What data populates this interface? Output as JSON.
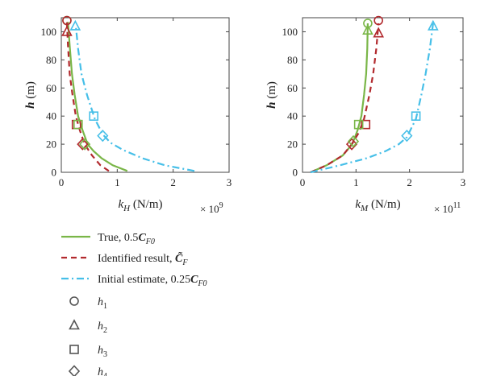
{
  "colors": {
    "true": "#7ab648",
    "identified": "#b22a2e",
    "initial": "#46bfe8",
    "marker": "#555555"
  },
  "chart_data": [
    {
      "type": "line",
      "ylabel": "h (m)",
      "xlabel": "k_H (N/m)",
      "xlabel_main": "k",
      "xlabel_sub": "H",
      "xlabel_unit": " (N/m)",
      "exponent_base": "× 10",
      "exponent_power": "9",
      "xlim": [
        0,
        3
      ],
      "ylim": [
        0,
        110
      ],
      "xticks": [
        0,
        1,
        2,
        3
      ],
      "yticks": [
        0,
        20,
        40,
        60,
        80,
        100
      ],
      "xtick_labels": [
        "0",
        "1",
        "2",
        "3"
      ],
      "ytick_labels": [
        "0",
        "20",
        "40",
        "60",
        "80",
        "100"
      ],
      "series": [
        {
          "key": "true",
          "x": [
            1.18,
            0.92,
            0.72,
            0.58,
            0.47,
            0.38,
            0.3,
            0.24,
            0.19,
            0.15,
            0.12
          ],
          "y": [
            1,
            5,
            10,
            15,
            20,
            30,
            40,
            55,
            70,
            90,
            107
          ]
        },
        {
          "key": "identified",
          "x": [
            0.85,
            0.7,
            0.55,
            0.45,
            0.4,
            0.33,
            0.26,
            0.2,
            0.15,
            0.12,
            0.1
          ],
          "y": [
            1,
            5,
            12,
            18,
            22,
            30,
            40,
            55,
            70,
            90,
            107
          ]
        },
        {
          "key": "initial",
          "x": [
            2.38,
            1.85,
            1.45,
            1.1,
            0.88,
            0.74,
            0.6,
            0.46,
            0.36,
            0.3,
            0.26
          ],
          "y": [
            1,
            5,
            10,
            16,
            21,
            27,
            38,
            55,
            70,
            88,
            104
          ]
        }
      ],
      "markers": [
        {
          "shape": "circle",
          "key": "true",
          "x": 0.1,
          "y": 108
        },
        {
          "shape": "circle",
          "key": "identified",
          "x": 0.1,
          "y": 108
        },
        {
          "shape": "triangle",
          "key": "identified",
          "x": 0.1,
          "y": 100
        },
        {
          "shape": "triangle",
          "key": "initial",
          "x": 0.25,
          "y": 104
        },
        {
          "shape": "square",
          "key": "initial",
          "x": 0.58,
          "y": 40
        },
        {
          "shape": "square",
          "key": "identified",
          "x": 0.27,
          "y": 34
        },
        {
          "shape": "square",
          "key": "true",
          "x": 0.3,
          "y": 34
        },
        {
          "shape": "diamond",
          "key": "initial",
          "x": 0.74,
          "y": 26
        },
        {
          "shape": "diamond",
          "key": "identified",
          "x": 0.38,
          "y": 20
        },
        {
          "shape": "diamond",
          "key": "true",
          "x": 0.42,
          "y": 20
        }
      ]
    },
    {
      "type": "line",
      "ylabel": "h (m)",
      "xlabel": "k_M (N/m)",
      "xlabel_main": "k",
      "xlabel_sub": "M",
      "xlabel_unit": " (N/m)",
      "exponent_base": "× 10",
      "exponent_power": "11",
      "xlim": [
        0,
        3
      ],
      "ylim": [
        0,
        110
      ],
      "xticks": [
        0,
        1,
        2,
        3
      ],
      "yticks": [
        0,
        20,
        40,
        60,
        80,
        100
      ],
      "xtick_labels": [
        "0",
        "1",
        "2",
        "3"
      ],
      "ytick_labels": [
        "0",
        "20",
        "40",
        "60",
        "80",
        "100"
      ],
      "series": [
        {
          "key": "true",
          "x": [
            0.15,
            0.45,
            0.75,
            0.93,
            1.03,
            1.1,
            1.15,
            1.19,
            1.21,
            1.22
          ],
          "y": [
            0,
            5,
            12,
            20,
            30,
            40,
            55,
            70,
            88,
            106
          ]
        },
        {
          "key": "identified",
          "x": [
            0.15,
            0.45,
            0.75,
            0.92,
            1.05,
            1.15,
            1.25,
            1.32,
            1.38,
            1.42
          ],
          "y": [
            0,
            5,
            12,
            20,
            28,
            38,
            55,
            70,
            88,
            106
          ]
        },
        {
          "key": "initial",
          "x": [
            0.15,
            0.7,
            1.2,
            1.55,
            1.8,
            1.95,
            2.12,
            2.22,
            2.3,
            2.38,
            2.44
          ],
          "y": [
            0,
            5,
            10,
            15,
            20,
            25,
            38,
            55,
            70,
            88,
            106
          ]
        }
      ],
      "markers": [
        {
          "shape": "circle",
          "key": "true",
          "x": 1.22,
          "y": 106
        },
        {
          "shape": "circle",
          "key": "identified",
          "x": 1.42,
          "y": 108
        },
        {
          "shape": "triangle",
          "key": "true",
          "x": 1.22,
          "y": 101
        },
        {
          "shape": "triangle",
          "key": "identified",
          "x": 1.42,
          "y": 99
        },
        {
          "shape": "triangle",
          "key": "initial",
          "x": 2.44,
          "y": 104
        },
        {
          "shape": "square",
          "key": "initial",
          "x": 2.12,
          "y": 40
        },
        {
          "shape": "square",
          "key": "identified",
          "x": 1.18,
          "y": 34
        },
        {
          "shape": "square",
          "key": "true",
          "x": 1.05,
          "y": 34
        },
        {
          "shape": "diamond",
          "key": "initial",
          "x": 1.95,
          "y": 26
        },
        {
          "shape": "diamond",
          "key": "identified",
          "x": 0.92,
          "y": 20
        },
        {
          "shape": "diamond",
          "key": "true",
          "x": 0.95,
          "y": 22
        }
      ]
    }
  ],
  "legend": [
    {
      "key": "true",
      "style": "solid",
      "text": "True, 0.5",
      "math": "C",
      "sub": "F0"
    },
    {
      "key": "identified",
      "style": "dashed",
      "text": "Identified result, ",
      "math": "C̃",
      "sub": "F"
    },
    {
      "key": "initial",
      "style": "dashdot",
      "text": "Initial estimate, 0.25",
      "math": "C",
      "sub": "F0"
    },
    {
      "shape": "circle",
      "text": "h",
      "sub": "1"
    },
    {
      "shape": "triangle",
      "text": "h",
      "sub": "2"
    },
    {
      "shape": "square",
      "text": "h",
      "sub": "3"
    },
    {
      "shape": "diamond",
      "text": "h",
      "sub": "4"
    }
  ]
}
